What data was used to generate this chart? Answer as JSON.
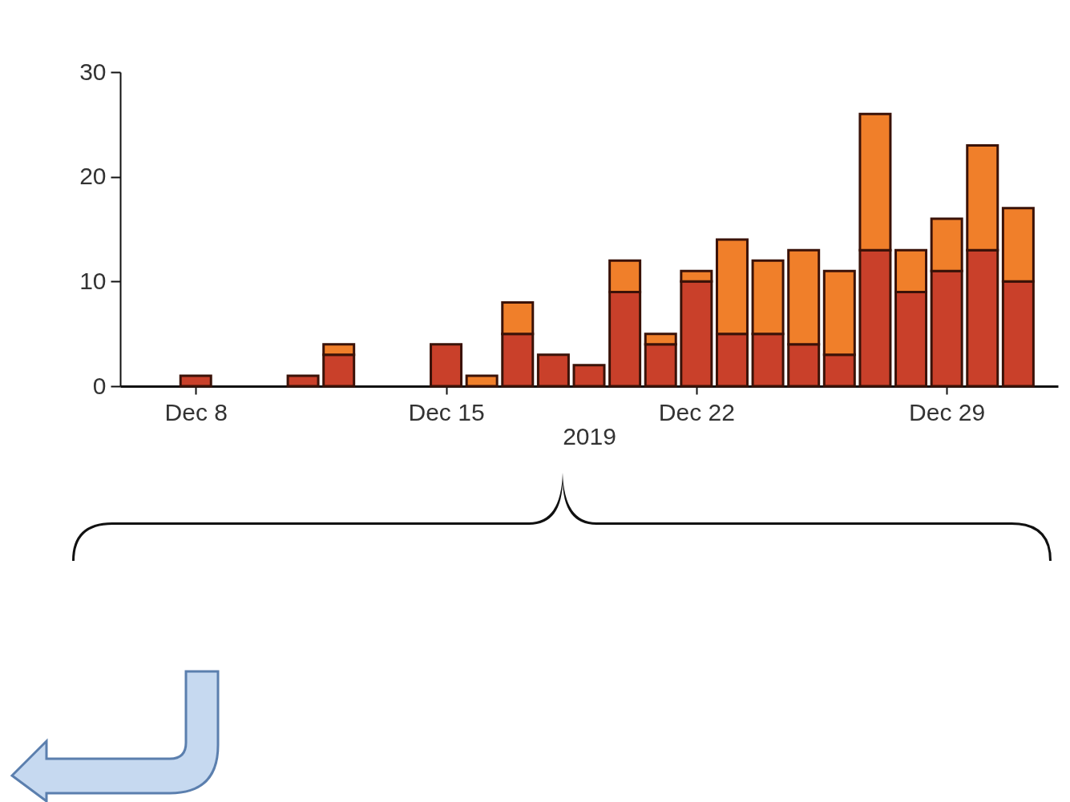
{
  "chart_data": {
    "type": "bar",
    "stacked": true,
    "xlabel": "2019",
    "x": [
      "2019-12-08",
      "2019-12-11",
      "2019-12-12",
      "2019-12-15",
      "2019-12-16",
      "2019-12-17",
      "2019-12-18",
      "2019-12-19",
      "2019-12-20",
      "2019-12-21",
      "2019-12-22",
      "2019-12-23",
      "2019-12-24",
      "2019-12-25",
      "2019-12-26",
      "2019-12-27",
      "2019-12-28",
      "2019-12-29",
      "2019-12-30",
      "2019-12-31"
    ],
    "series": [
      {
        "color": "#c9402a",
        "values": [
          1,
          1,
          3,
          4,
          0,
          5,
          3,
          2,
          9,
          4,
          10,
          5,
          5,
          4,
          3,
          13,
          9,
          11,
          13,
          10
        ]
      },
      {
        "color": "#f07f2a",
        "values": [
          0,
          0,
          1,
          0,
          1,
          3,
          0,
          0,
          3,
          1,
          1,
          9,
          7,
          9,
          8,
          13,
          4,
          5,
          10,
          7
        ]
      }
    ],
    "xlim": [
      "2019-12-06",
      "2020-01-01"
    ],
    "xticks": [
      {
        "value": "2019-12-08",
        "label": "Dec 8"
      },
      {
        "value": "2019-12-15",
        "label": "Dec 15"
      },
      {
        "value": "2019-12-22",
        "label": "Dec 22"
      },
      {
        "value": "2019-12-29",
        "label": "Dec 29"
      }
    ],
    "ylim": [
      0,
      30
    ],
    "yticks": [
      0,
      10,
      20,
      30
    ]
  }
}
